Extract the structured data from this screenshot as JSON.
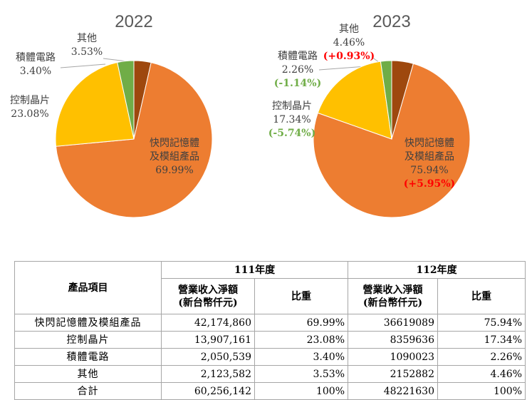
{
  "chart_data": [
    {
      "type": "pie",
      "title": "2022",
      "categories": [
        "其他",
        "快閃記憶體及模組產品",
        "控制晶片",
        "積體電路"
      ],
      "values": [
        3.53,
        69.99,
        23.08,
        3.4
      ],
      "value_labels": [
        "3.53%",
        "69.99%",
        "23.08%",
        "3.40%"
      ],
      "colors": [
        "#9e480e",
        "#ed7d31",
        "#ffc000",
        "#70ad47"
      ]
    },
    {
      "type": "pie",
      "title": "2023",
      "categories": [
        "其他",
        "快閃記憶體及模組產品",
        "控制晶片",
        "積體電路"
      ],
      "values": [
        4.46,
        75.94,
        17.34,
        2.26
      ],
      "value_labels": [
        "4.46%",
        "75.94%",
        "17.34%",
        "2.26%"
      ],
      "changes": [
        "(+0.93%)",
        "(+5.95%)",
        "(-5.74%)",
        "(-1.14%)"
      ],
      "change_colors": [
        "#ff0000",
        "#ff0000",
        "#70ad47",
        "#70ad47"
      ],
      "colors": [
        "#9e480e",
        "#ed7d31",
        "#ffc000",
        "#70ad47"
      ]
    }
  ],
  "table": {
    "item_header": "產品項目",
    "years": [
      "111年度",
      "112年度"
    ],
    "revenue_header": [
      "營業收入淨額",
      "(新台幣仟元)"
    ],
    "share_header": "比重",
    "rows": [
      [
        "快閃記憶體及模組產品",
        "42,174,860",
        "69.99%",
        "36619089",
        "75.94%"
      ],
      [
        "控制晶片",
        "13,907,161",
        "23.08%",
        "8359636",
        "17.34%"
      ],
      [
        "積體電路",
        "2,050,539",
        "3.40%",
        "1090023",
        "2.26%"
      ],
      [
        "其他",
        "2,123,582",
        "3.53%",
        "2152882",
        "4.46%"
      ],
      [
        "合計",
        "60,256,142",
        "100%",
        "48221630",
        "100%"
      ]
    ]
  }
}
